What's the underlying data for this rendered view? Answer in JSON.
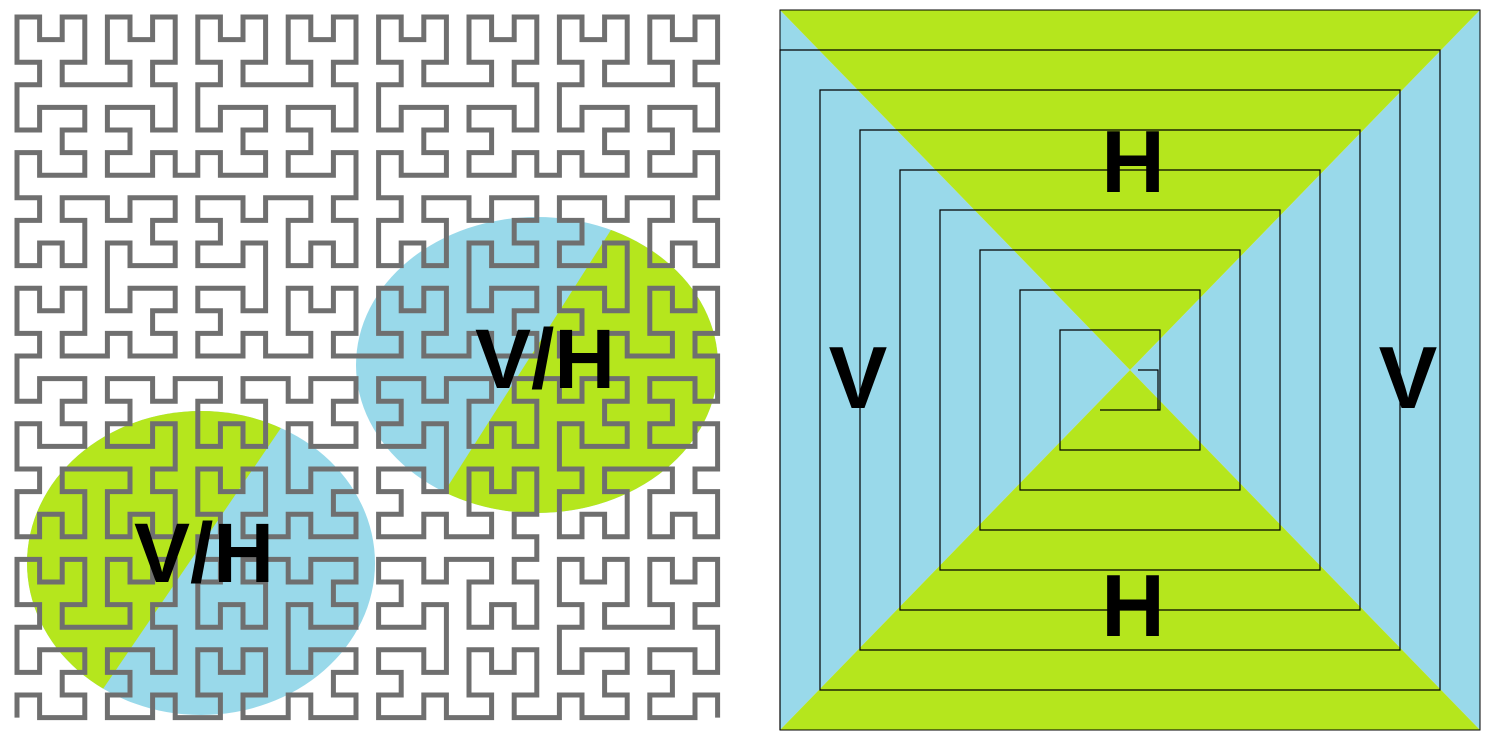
{
  "colors": {
    "green": "#b5e61d",
    "blue": "#99d9ea",
    "curve": "#6f6f6f",
    "line": "#000000",
    "background": "#ffffff"
  },
  "left_panel": {
    "curve_type": "hilbert-curve",
    "curve_order": 5,
    "circles": [
      {
        "label": "V/H"
      },
      {
        "label": "V/H"
      }
    ]
  },
  "right_panel": {
    "structure": "square-spiral",
    "spiral_turns": 9,
    "labels": {
      "top": "H",
      "bottom": "H",
      "left": "V",
      "right": "V"
    }
  }
}
